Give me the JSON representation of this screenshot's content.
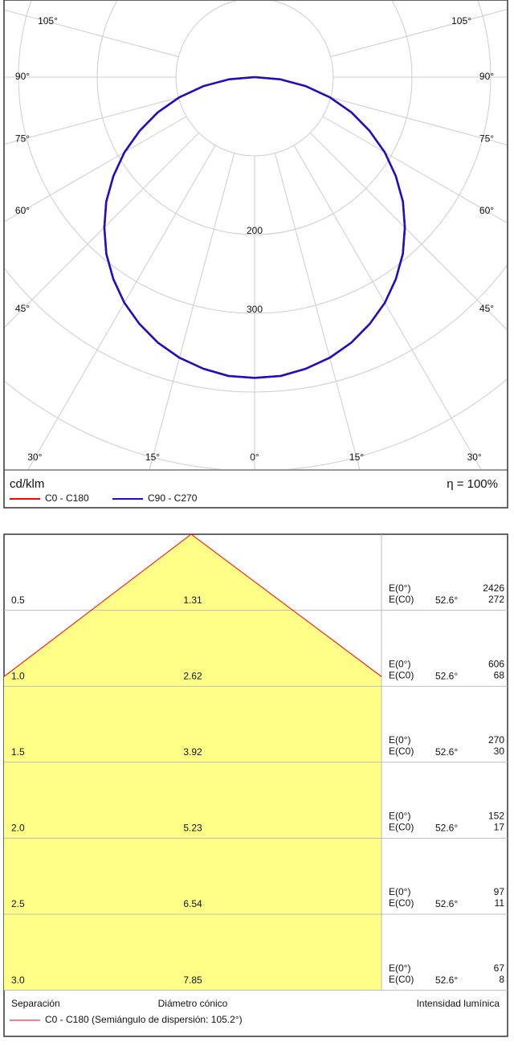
{
  "chart_data": [
    {
      "type": "polar",
      "unit": "cd/klm",
      "efficiency": "η = 100%",
      "angles": [
        0,
        5,
        10,
        15,
        20,
        25,
        30,
        35,
        40,
        45,
        50,
        55,
        60,
        65,
        70,
        75,
        80,
        85,
        90
      ],
      "series": [
        {
          "name": "C0 - C180",
          "color": "#ff0000",
          "values": [
            382,
            381,
            376,
            369,
            359,
            346,
            331,
            313,
            293,
            270,
            246,
            219,
            191,
            161,
            131,
            99,
            66,
            33,
            0
          ]
        },
        {
          "name": "C90 - C270",
          "color": "#1a0fcc",
          "values": [
            382,
            381,
            376,
            369,
            359,
            346,
            331,
            313,
            293,
            270,
            246,
            219,
            191,
            161,
            131,
            99,
            66,
            33,
            0
          ]
        }
      ],
      "rlim": [
        0,
        400
      ],
      "rgrid": [
        100,
        200,
        300,
        400,
        500,
        600,
        700
      ],
      "rticks": [
        200,
        300
      ],
      "angle_ticks": [
        {
          "value": 0,
          "label": "0°"
        },
        {
          "value": 15,
          "label": "15°"
        },
        {
          "value": 30,
          "label": "30°"
        },
        {
          "value": 45,
          "label": "45°"
        },
        {
          "value": 60,
          "label": "60°"
        },
        {
          "value": 75,
          "label": "75°"
        },
        {
          "value": 90,
          "label": "90°"
        },
        {
          "value": 105,
          "label": "105°"
        }
      ]
    },
    {
      "type": "cone",
      "color": "#ff0000",
      "fill": "#ffff88",
      "e0_label": "E(0°)",
      "ec0_label": "E(C0)",
      "angle_label": "52.6°",
      "rows": [
        {
          "height": "0.5",
          "diameter": 1.31,
          "e0": 2426,
          "ec0": 272
        },
        {
          "height": "1.0",
          "diameter": 2.62,
          "e0": 606,
          "ec0": 68
        },
        {
          "height": "1.5",
          "diameter": 3.92,
          "e0": 270,
          "ec0": 30
        },
        {
          "height": "2.0",
          "diameter": 5.23,
          "e0": 152,
          "ec0": 17
        },
        {
          "height": "2.5",
          "diameter": 6.54,
          "e0": 97,
          "ec0": 11
        },
        {
          "height": "3.0",
          "diameter": 7.85,
          "e0": 67,
          "ec0": 8
        }
      ],
      "headers": [
        "Separación",
        "Diámetro cónico",
        "Intensidad lumínica"
      ],
      "legend": "C0 - C180 (Semiángulo de dispersión: 105.2°)"
    }
  ]
}
